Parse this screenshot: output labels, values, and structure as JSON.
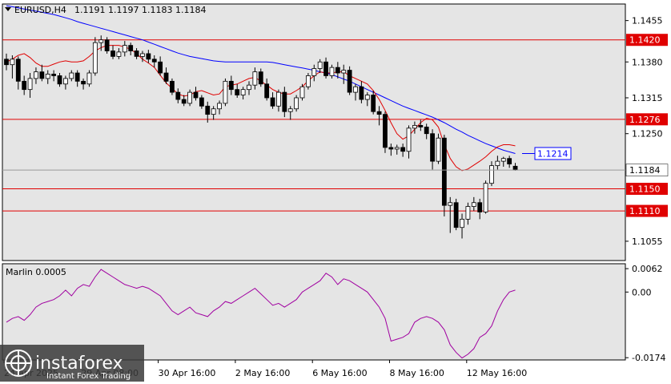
{
  "header": {
    "symbol": "EURUSD,H4",
    "quote": "1.1191 1.1197 1.1183 1.1184"
  },
  "oscillator": {
    "label": "Marlin 0.0005",
    "ticks": [
      "0.0062",
      "0.00",
      "-0.0174"
    ]
  },
  "price_axis": {
    "ticks": [
      "1.1455",
      "1.1380",
      "1.1315",
      "1.1250",
      "1.1055"
    ]
  },
  "level_labels": [
    "1.1420",
    "1.1276",
    "1.1150",
    "1.1110"
  ],
  "current_price_label": "1.1184",
  "ma_label": "1.1214",
  "time_axis": {
    "labels": [
      "24 Apr 2025",
      "29 Apr 08:00",
      "30 Apr 16:00",
      "2 May 16:00",
      "6 May 16:00",
      "8 May 16:00",
      "12 May 16:00"
    ]
  },
  "watermark": {
    "brand": "instaforex",
    "tagline": "Instant Forex Trading"
  },
  "colors": {
    "background": "#e5e5e5",
    "bull_candle": "#ffffff",
    "bear_candle": "#000000",
    "level_line": "#e00000",
    "ma_fast": "#e00000",
    "ma_slow": "#0000ff",
    "oscillator": "#a000a0"
  },
  "chart_data": {
    "type": "candlestick",
    "ylim": [
      1.102,
      1.1485
    ],
    "levels": [
      1.142,
      1.1276,
      1.115,
      1.111
    ],
    "current_price": 1.1184,
    "candles": [
      [
        1.1385,
        1.1395,
        1.1365,
        1.1375
      ],
      [
        1.1375,
        1.1392,
        1.135,
        1.1385
      ],
      [
        1.1385,
        1.139,
        1.133,
        1.1345
      ],
      [
        1.1345,
        1.1355,
        1.132,
        1.133
      ],
      [
        1.133,
        1.136,
        1.1315,
        1.135
      ],
      [
        1.135,
        1.137,
        1.134,
        1.1362
      ],
      [
        1.1362,
        1.1375,
        1.1345,
        1.135
      ],
      [
        1.135,
        1.1365,
        1.134,
        1.1358
      ],
      [
        1.1358,
        1.1365,
        1.1345,
        1.1355
      ],
      [
        1.1355,
        1.136,
        1.1335,
        1.134
      ],
      [
        1.134,
        1.1355,
        1.133,
        1.135
      ],
      [
        1.135,
        1.1365,
        1.1345,
        1.136
      ],
      [
        1.136,
        1.1365,
        1.1335,
        1.1345
      ],
      [
        1.1345,
        1.135,
        1.133,
        1.134
      ],
      [
        1.134,
        1.1365,
        1.1335,
        1.136
      ],
      [
        1.136,
        1.1425,
        1.1355,
        1.1415
      ],
      [
        1.1415,
        1.1428,
        1.14,
        1.142
      ],
      [
        1.142,
        1.1425,
        1.1395,
        1.14
      ],
      [
        1.14,
        1.141,
        1.1385,
        1.139
      ],
      [
        1.139,
        1.1405,
        1.1385,
        1.1398
      ],
      [
        1.1398,
        1.1418,
        1.139,
        1.141
      ],
      [
        1.141,
        1.1415,
        1.1392,
        1.14
      ],
      [
        1.14,
        1.1405,
        1.1385,
        1.139
      ],
      [
        1.139,
        1.14,
        1.138,
        1.1395
      ],
      [
        1.1395,
        1.1402,
        1.1378,
        1.1385
      ],
      [
        1.1385,
        1.1392,
        1.137,
        1.138
      ],
      [
        1.138,
        1.139,
        1.1355,
        1.136
      ],
      [
        1.136,
        1.137,
        1.134,
        1.1345
      ],
      [
        1.1345,
        1.135,
        1.132,
        1.1325
      ],
      [
        1.1325,
        1.1332,
        1.1305,
        1.1312
      ],
      [
        1.1312,
        1.132,
        1.13,
        1.1305
      ],
      [
        1.1305,
        1.133,
        1.13,
        1.1325
      ],
      [
        1.1325,
        1.1335,
        1.131,
        1.1315
      ],
      [
        1.1315,
        1.132,
        1.1295,
        1.13
      ],
      [
        1.13,
        1.1308,
        1.127,
        1.1285
      ],
      [
        1.1285,
        1.13,
        1.1275,
        1.1295
      ],
      [
        1.1295,
        1.131,
        1.1285,
        1.1305
      ],
      [
        1.1305,
        1.135,
        1.13,
        1.1345
      ],
      [
        1.1345,
        1.1355,
        1.132,
        1.133
      ],
      [
        1.133,
        1.134,
        1.1315,
        1.132
      ],
      [
        1.132,
        1.1335,
        1.1312,
        1.133
      ],
      [
        1.133,
        1.1345,
        1.132,
        1.1338
      ],
      [
        1.1338,
        1.137,
        1.133,
        1.1362
      ],
      [
        1.1362,
        1.1368,
        1.1335,
        1.134
      ],
      [
        1.134,
        1.135,
        1.131,
        1.1315
      ],
      [
        1.1315,
        1.1325,
        1.1295,
        1.13
      ],
      [
        1.13,
        1.133,
        1.129,
        1.1325
      ],
      [
        1.1325,
        1.1335,
        1.128,
        1.129
      ],
      [
        1.129,
        1.13,
        1.1275,
        1.1295
      ],
      [
        1.1295,
        1.132,
        1.129,
        1.1315
      ],
      [
        1.1315,
        1.134,
        1.131,
        1.1335
      ],
      [
        1.1335,
        1.136,
        1.133,
        1.1355
      ],
      [
        1.1355,
        1.1375,
        1.1345,
        1.1368
      ],
      [
        1.1368,
        1.1385,
        1.136,
        1.138
      ],
      [
        1.138,
        1.1388,
        1.135,
        1.1355
      ],
      [
        1.1355,
        1.1375,
        1.135,
        1.137
      ],
      [
        1.137,
        1.138,
        1.135,
        1.136
      ],
      [
        1.136,
        1.1375,
        1.134,
        1.1365
      ],
      [
        1.1365,
        1.1372,
        1.132,
        1.1325
      ],
      [
        1.1325,
        1.134,
        1.131,
        1.1335
      ],
      [
        1.1335,
        1.1345,
        1.1305,
        1.1312
      ],
      [
        1.1312,
        1.1325,
        1.13,
        1.132
      ],
      [
        1.132,
        1.1328,
        1.1285,
        1.129
      ],
      [
        1.129,
        1.13,
        1.1265,
        1.1285
      ],
      [
        1.1285,
        1.129,
        1.1215,
        1.1225
      ],
      [
        1.1225,
        1.1232,
        1.121,
        1.1222
      ],
      [
        1.1222,
        1.123,
        1.1212,
        1.1225
      ],
      [
        1.1225,
        1.1232,
        1.1208,
        1.1218
      ],
      [
        1.1218,
        1.1265,
        1.1205,
        1.126
      ],
      [
        1.126,
        1.1272,
        1.125,
        1.1265
      ],
      [
        1.1265,
        1.1275,
        1.1255,
        1.1262
      ],
      [
        1.1262,
        1.1268,
        1.124,
        1.125
      ],
      [
        1.125,
        1.1258,
        1.1185,
        1.12
      ],
      [
        1.12,
        1.125,
        1.1195,
        1.1242
      ],
      [
        1.1242,
        1.1248,
        1.11,
        1.112
      ],
      [
        1.112,
        1.1135,
        1.107,
        1.1125
      ],
      [
        1.1125,
        1.1132,
        1.1075,
        1.108
      ],
      [
        1.108,
        1.1105,
        1.106,
        1.1095
      ],
      [
        1.1095,
        1.1125,
        1.1085,
        1.1118
      ],
      [
        1.1118,
        1.1135,
        1.111,
        1.1125
      ],
      [
        1.1125,
        1.1132,
        1.1095,
        1.1108
      ],
      [
        1.1108,
        1.1165,
        1.1105,
        1.116
      ],
      [
        1.116,
        1.12,
        1.1155,
        1.1192
      ],
      [
        1.1192,
        1.121,
        1.1185,
        1.12
      ],
      [
        1.12,
        1.1208,
        1.119,
        1.1205
      ],
      [
        1.1205,
        1.121,
        1.1188,
        1.1195
      ],
      [
        1.1191,
        1.1197,
        1.1183,
        1.1184
      ]
    ],
    "ma_fast": [
      1.138,
      1.1385,
      1.1392,
      1.1395,
      1.1388,
      1.1378,
      1.1372,
      1.1372,
      1.1376,
      1.138,
      1.1382,
      1.138,
      1.138,
      1.1382,
      1.139,
      1.14,
      1.1406,
      1.141,
      1.141,
      1.141,
      1.1407,
      1.1403,
      1.1395,
      1.1385,
      1.1378,
      1.137,
      1.1356,
      1.1342,
      1.1332,
      1.1322,
      1.1318,
      1.132,
      1.1326,
      1.1328,
      1.1324,
      1.132,
      1.1322,
      1.1335,
      1.1338,
      1.134,
      1.1345,
      1.135,
      1.1352,
      1.1345,
      1.1338,
      1.133,
      1.1325,
      1.1322,
      1.1322,
      1.1328,
      1.1335,
      1.1346,
      1.1355,
      1.1362,
      1.136,
      1.136,
      1.1362,
      1.1362,
      1.1355,
      1.135,
      1.1345,
      1.134,
      1.1328,
      1.1312,
      1.1292,
      1.127,
      1.125,
      1.124,
      1.1246,
      1.1258,
      1.127,
      1.1278,
      1.1275,
      1.1262,
      1.123,
      1.1205,
      1.119,
      1.1183,
      1.1186,
      1.1193,
      1.12,
      1.1208,
      1.1218,
      1.1226,
      1.123,
      1.123,
      1.1228
    ],
    "ma_slow": [
      1.1482,
      1.148,
      1.1478,
      1.1476,
      1.1474,
      1.1472,
      1.147,
      1.1468,
      1.1466,
      1.1463,
      1.146,
      1.1457,
      1.1453,
      1.145,
      1.1447,
      1.1444,
      1.1441,
      1.1438,
      1.1435,
      1.1432,
      1.1429,
      1.1426,
      1.1423,
      1.142,
      1.1416,
      1.1412,
      1.1408,
      1.1404,
      1.14,
      1.1396,
      1.1393,
      1.139,
      1.1388,
      1.1386,
      1.1384,
      1.1382,
      1.1381,
      1.138,
      1.138,
      1.138,
      1.138,
      1.138,
      1.138,
      1.138,
      1.138,
      1.1379,
      1.1377,
      1.1375,
      1.1373,
      1.1371,
      1.1369,
      1.1367,
      1.1365,
      1.1362,
      1.136,
      1.1357,
      1.1353,
      1.1349,
      1.1345,
      1.134,
      1.1335,
      1.133,
      1.1325,
      1.132,
      1.1315,
      1.131,
      1.1305,
      1.13,
      1.1296,
      1.1292,
      1.1288,
      1.1284,
      1.128,
      1.1275,
      1.127,
      1.1264,
      1.1258,
      1.1253,
      1.1247,
      1.1242,
      1.1237,
      1.1232,
      1.1228,
      1.1224,
      1.122,
      1.1217,
      1.1214
    ],
    "oscillator": {
      "name": "Marlin",
      "ylim": [
        -0.018,
        0.0075
      ],
      "values": [
        -0.008,
        -0.007,
        -0.0065,
        -0.0075,
        -0.006,
        -0.004,
        -0.003,
        -0.0025,
        -0.002,
        -0.001,
        0.0005,
        -0.001,
        0.001,
        0.002,
        0.0015,
        0.004,
        0.006,
        0.005,
        0.004,
        0.003,
        0.002,
        0.0015,
        0.001,
        0.0015,
        0.001,
        0.0,
        -0.001,
        -0.003,
        -0.005,
        -0.006,
        -0.005,
        -0.004,
        -0.0055,
        -0.006,
        -0.0065,
        -0.005,
        -0.004,
        -0.0025,
        -0.003,
        -0.002,
        -0.001,
        0.0,
        0.001,
        -0.0005,
        -0.002,
        -0.0035,
        -0.003,
        -0.004,
        -0.003,
        -0.002,
        0.0,
        0.001,
        0.002,
        0.003,
        0.005,
        0.004,
        0.002,
        0.0035,
        0.003,
        0.002,
        0.001,
        0.0,
        -0.002,
        -0.004,
        -0.007,
        -0.013,
        -0.0125,
        -0.012,
        -0.011,
        -0.008,
        -0.007,
        -0.0065,
        -0.007,
        -0.008,
        -0.01,
        -0.014,
        -0.016,
        -0.0175,
        -0.0165,
        -0.015,
        -0.012,
        -0.011,
        -0.009,
        -0.005,
        -0.002,
        0.0,
        0.0005
      ]
    }
  }
}
